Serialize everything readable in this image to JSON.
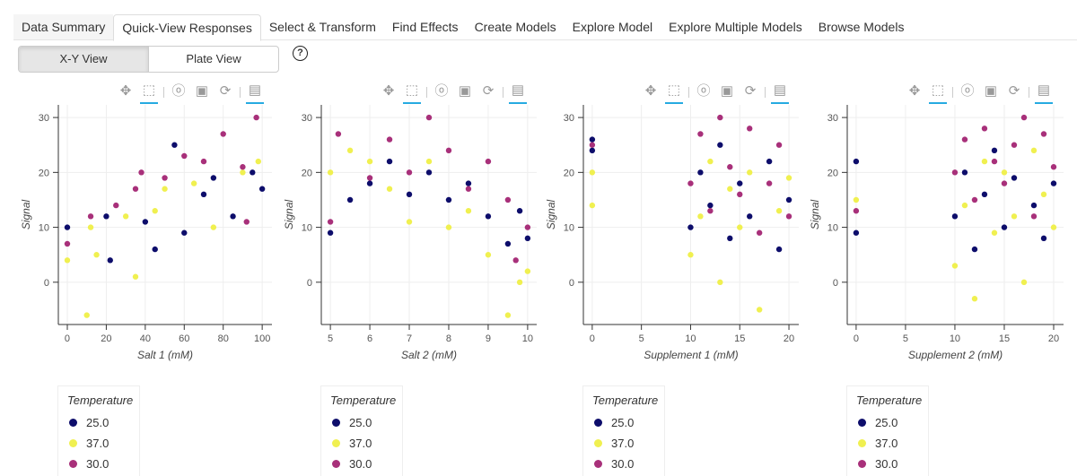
{
  "tabs": [
    "Data Summary",
    "Quick-View Responses",
    "Select & Transform",
    "Find Effects",
    "Create Models",
    "Explore Model",
    "Explore Multiple Models",
    "Browse Models"
  ],
  "active_tab": "Quick-View Responses",
  "view_toggle": {
    "xy": "X-Y View",
    "plate": "Plate View",
    "selected": "X-Y View"
  },
  "help": "?",
  "toolbar_icons": [
    "pan-icon",
    "box-zoom-icon",
    "wheel-zoom-icon",
    "save-icon",
    "reset-icon",
    "hover-icon"
  ],
  "legend": {
    "title": "Temperature",
    "items": [
      {
        "label": "25.0",
        "color": "#0d0d6b"
      },
      {
        "label": "37.0",
        "color": "#f0f050"
      },
      {
        "label": "30.0",
        "color": "#a8307a"
      }
    ]
  },
  "chart_data": [
    {
      "type": "scatter",
      "xlabel": "Salt 1 (mM)",
      "ylabel": "Signal",
      "xlim": [
        -4.6,
        105
      ],
      "ylim": [
        -7.7,
        32.3
      ],
      "xticks": [
        0,
        20,
        40,
        60,
        80,
        100
      ],
      "yticks": [
        0,
        10,
        20,
        30
      ],
      "grid": true,
      "series": [
        {
          "name": "25.0",
          "points": [
            [
              0,
              10
            ],
            [
              20,
              12
            ],
            [
              22,
              4
            ],
            [
              40,
              11
            ],
            [
              45,
              6
            ],
            [
              55,
              25
            ],
            [
              60,
              9
            ],
            [
              70,
              16
            ],
            [
              75,
              19
            ],
            [
              85,
              12
            ],
            [
              95,
              20
            ],
            [
              100,
              17
            ]
          ]
        },
        {
          "name": "37.0",
          "points": [
            [
              0,
              4
            ],
            [
              12,
              10
            ],
            [
              15,
              5
            ],
            [
              30,
              12
            ],
            [
              45,
              13
            ],
            [
              50,
              17
            ],
            [
              65,
              18
            ],
            [
              75,
              10
            ],
            [
              90,
              20
            ],
            [
              98,
              22
            ],
            [
              35,
              1
            ],
            [
              10,
              -6
            ]
          ]
        },
        {
          "name": "30.0",
          "points": [
            [
              0,
              7
            ],
            [
              12,
              12
            ],
            [
              25,
              14
            ],
            [
              35,
              17
            ],
            [
              38,
              20
            ],
            [
              50,
              19
            ],
            [
              60,
              23
            ],
            [
              70,
              22
            ],
            [
              80,
              27
            ],
            [
              90,
              21
            ],
            [
              97,
              30
            ],
            [
              92,
              11
            ]
          ]
        }
      ]
    },
    {
      "type": "scatter",
      "xlabel": "Salt 2 (mM)",
      "ylabel": "Signal",
      "xlim": [
        4.77,
        10.23
      ],
      "ylim": [
        -7.7,
        32.3
      ],
      "xticks": [
        5,
        6,
        7,
        8,
        9,
        10
      ],
      "yticks": [
        0,
        10,
        20,
        30
      ],
      "grid": true,
      "series": [
        {
          "name": "25.0",
          "points": [
            [
              5,
              9
            ],
            [
              5.5,
              15
            ],
            [
              6,
              18
            ],
            [
              6.5,
              22
            ],
            [
              7,
              16
            ],
            [
              7.5,
              20
            ],
            [
              8,
              15
            ],
            [
              8.5,
              18
            ],
            [
              9,
              12
            ],
            [
              9.5,
              7
            ],
            [
              10,
              8
            ],
            [
              9.8,
              13
            ]
          ]
        },
        {
          "name": "37.0",
          "points": [
            [
              5,
              20
            ],
            [
              5.5,
              24
            ],
            [
              6,
              22
            ],
            [
              6.5,
              17
            ],
            [
              7,
              11
            ],
            [
              7.5,
              22
            ],
            [
              8,
              10
            ],
            [
              8.5,
              13
            ],
            [
              9,
              5
            ],
            [
              9.5,
              -6
            ],
            [
              10,
              2
            ],
            [
              9.8,
              0
            ]
          ]
        },
        {
          "name": "30.0",
          "points": [
            [
              5,
              11
            ],
            [
              5.2,
              27
            ],
            [
              6,
              19
            ],
            [
              6.5,
              26
            ],
            [
              7,
              20
            ],
            [
              7.5,
              30
            ],
            [
              8,
              24
            ],
            [
              8.5,
              17
            ],
            [
              9,
              22
            ],
            [
              9.5,
              15
            ],
            [
              10,
              10
            ],
            [
              9.7,
              4
            ]
          ]
        }
      ]
    },
    {
      "type": "scatter",
      "xlabel": "Supplement 1 (mM)",
      "ylabel": "Signal",
      "xlim": [
        -0.9,
        21
      ],
      "ylim": [
        -7.7,
        32.3
      ],
      "xticks": [
        0,
        5,
        10,
        15,
        20
      ],
      "yticks": [
        0,
        10,
        20,
        30
      ],
      "grid": true,
      "series": [
        {
          "name": "25.0",
          "points": [
            [
              0,
              26
            ],
            [
              0,
              24
            ],
            [
              10,
              10
            ],
            [
              11,
              20
            ],
            [
              12,
              14
            ],
            [
              13,
              25
            ],
            [
              14,
              8
            ],
            [
              15,
              18
            ],
            [
              16,
              12
            ],
            [
              18,
              22
            ],
            [
              19,
              6
            ],
            [
              20,
              15
            ]
          ]
        },
        {
          "name": "37.0",
          "points": [
            [
              0,
              14
            ],
            [
              0,
              20
            ],
            [
              10,
              5
            ],
            [
              11,
              12
            ],
            [
              12,
              22
            ],
            [
              13,
              0
            ],
            [
              14,
              17
            ],
            [
              15,
              10
            ],
            [
              16,
              20
            ],
            [
              17,
              -5
            ],
            [
              19,
              13
            ],
            [
              20,
              19
            ]
          ]
        },
        {
          "name": "30.0",
          "points": [
            [
              0,
              25
            ],
            [
              10,
              18
            ],
            [
              11,
              27
            ],
            [
              12,
              13
            ],
            [
              13,
              30
            ],
            [
              14,
              21
            ],
            [
              15,
              16
            ],
            [
              16,
              28
            ],
            [
              17,
              9
            ],
            [
              18,
              18
            ],
            [
              19,
              25
            ],
            [
              20,
              12
            ]
          ]
        }
      ]
    },
    {
      "type": "scatter",
      "xlabel": "Supplement 2 (mM)",
      "ylabel": "Signal",
      "xlim": [
        -0.9,
        21
      ],
      "ylim": [
        -7.7,
        32.3
      ],
      "xticks": [
        0,
        5,
        10,
        15,
        20
      ],
      "yticks": [
        0,
        10,
        20,
        30
      ],
      "grid": true,
      "series": [
        {
          "name": "25.0",
          "points": [
            [
              0,
              22
            ],
            [
              0,
              9
            ],
            [
              10,
              12
            ],
            [
              11,
              20
            ],
            [
              12,
              6
            ],
            [
              13,
              16
            ],
            [
              14,
              24
            ],
            [
              15,
              10
            ],
            [
              16,
              19
            ],
            [
              18,
              14
            ],
            [
              19,
              8
            ],
            [
              20,
              18
            ]
          ]
        },
        {
          "name": "37.0",
          "points": [
            [
              0,
              15
            ],
            [
              10,
              3
            ],
            [
              11,
              14
            ],
            [
              12,
              -3
            ],
            [
              13,
              22
            ],
            [
              14,
              9
            ],
            [
              15,
              20
            ],
            [
              16,
              12
            ],
            [
              17,
              0
            ],
            [
              18,
              24
            ],
            [
              19,
              16
            ],
            [
              20,
              10
            ]
          ]
        },
        {
          "name": "30.0",
          "points": [
            [
              0,
              13
            ],
            [
              10,
              20
            ],
            [
              11,
              26
            ],
            [
              12,
              15
            ],
            [
              13,
              28
            ],
            [
              14,
              22
            ],
            [
              15,
              18
            ],
            [
              16,
              25
            ],
            [
              17,
              30
            ],
            [
              18,
              12
            ],
            [
              19,
              27
            ],
            [
              20,
              21
            ]
          ]
        }
      ]
    }
  ]
}
